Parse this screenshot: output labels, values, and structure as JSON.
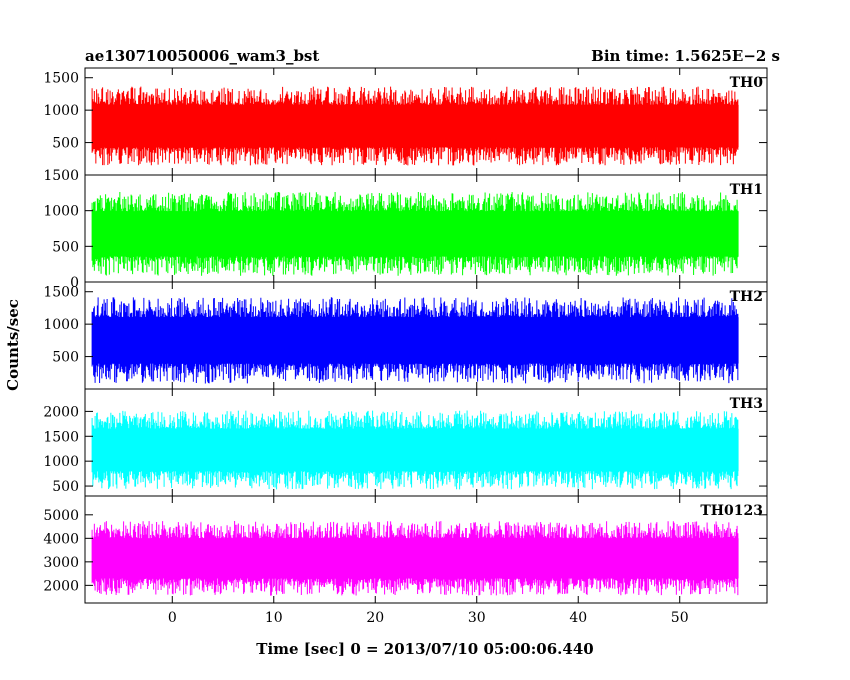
{
  "chart_data": {
    "type": "line",
    "title_left": "ae130710050006_wam3_bst",
    "title_right": "Bin time: 1.5625E−2 s",
    "xlabel": "Time [sec] 0 = 2013/07/10 05:00:06.440",
    "ylabel": "Counts/sec",
    "xlim": [
      -8.6,
      58.6
    ],
    "x_ticks": [
      0,
      10,
      20,
      30,
      40,
      50
    ],
    "x_tick_labels": [
      "0",
      "10",
      "20",
      "30",
      "40",
      "50"
    ],
    "data_x_range": [
      -7.9,
      55.8
    ],
    "bin_time_s": 0.015625,
    "grid": false,
    "panels": [
      {
        "name": "TH0",
        "color": "#ff0000",
        "ylim": [
          0,
          1650
        ],
        "ticks": [
          500,
          1000,
          1500
        ],
        "tick_labels": [
          "500",
          "1000",
          "1500"
        ],
        "level_range": [
          160,
          1350
        ]
      },
      {
        "name": "TH1",
        "color": "#00ff00",
        "ylim": [
          0,
          1500
        ],
        "ticks": [
          0,
          500,
          1000,
          1500
        ],
        "tick_labels": [
          "0",
          "500",
          "1000",
          "1500"
        ],
        "level_range": [
          100,
          1250
        ]
      },
      {
        "name": "TH2",
        "color": "#0000ff",
        "ylim": [
          0,
          1650
        ],
        "ticks": [
          500,
          1000,
          1500
        ],
        "tick_labels": [
          "500",
          "1000",
          "1500"
        ],
        "level_range": [
          100,
          1400
        ]
      },
      {
        "name": "TH3",
        "color": "#00ffff",
        "ylim": [
          300,
          2450
        ],
        "ticks": [
          500,
          1000,
          1500,
          2000
        ],
        "tick_labels": [
          "500",
          "1000",
          "1500",
          "2000"
        ],
        "level_range": [
          450,
          2000
        ]
      },
      {
        "name": "TH0123",
        "color": "#ff00ff",
        "ylim": [
          1250,
          5800
        ],
        "ticks": [
          2000,
          3000,
          4000,
          5000
        ],
        "tick_labels": [
          "2000",
          "3000",
          "4000",
          "5000"
        ],
        "level_range": [
          1600,
          4700
        ]
      }
    ]
  }
}
